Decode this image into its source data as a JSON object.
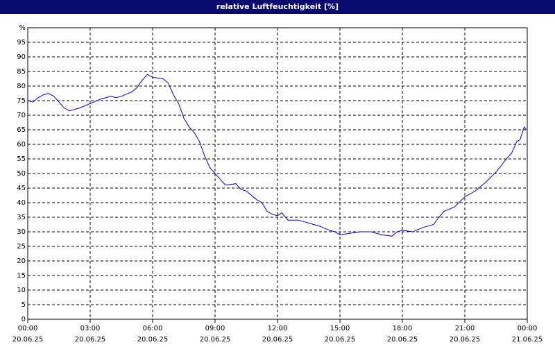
{
  "chart_data": {
    "type": "line",
    "title": "relative Luftfeuchtigkeit [%]",
    "x": [
      0,
      0.25,
      0.5,
      0.75,
      1,
      1.25,
      1.5,
      1.75,
      2,
      2.5,
      3,
      3.5,
      4,
      4.25,
      4.5,
      5,
      5.25,
      5.5,
      5.75,
      6,
      6.5,
      6.75,
      7,
      7.25,
      7.5,
      7.75,
      8,
      8.25,
      8.5,
      8.75,
      9,
      9.25,
      9.5,
      10,
      10.25,
      10.5,
      11,
      11.25,
      11.5,
      11.75,
      12,
      12.2,
      12.5,
      13,
      13.5,
      14,
      14.5,
      14.75,
      15,
      15.5,
      16,
      16.5,
      17,
      17.5,
      17.75,
      18,
      18.5,
      19,
      19.5,
      19.75,
      20,
      20.5,
      21,
      21.5,
      22,
      22.5,
      23,
      23.25,
      23.5,
      23.65,
      23.85,
      23.95
    ],
    "series": [
      {
        "name": "relative Luftfeuchtigkeit",
        "color": "#0000cc",
        "values": [
          75,
          74.5,
          76,
          77,
          77.5,
          76.5,
          74.5,
          72.5,
          71.5,
          72.5,
          74,
          75.5,
          76.5,
          76,
          76.5,
          78,
          79.5,
          82,
          84,
          83,
          82.5,
          81,
          77,
          74,
          69,
          66,
          64,
          61,
          56,
          52,
          50,
          48,
          46,
          46.5,
          44.5,
          44,
          41,
          40,
          37,
          36,
          35.5,
          36.5,
          34,
          34,
          33,
          32,
          30.5,
          30,
          29,
          29.5,
          30,
          30,
          29,
          28.5,
          30,
          30.5,
          30,
          31.5,
          32.5,
          35,
          37,
          38.5,
          42,
          44,
          47,
          50.5,
          55,
          57,
          61,
          61.5,
          66,
          65
        ]
      }
    ],
    "xlim": [
      0,
      24
    ],
    "xticks": [
      {
        "value": 0,
        "label": "00:00",
        "date": "20.06.25"
      },
      {
        "value": 3,
        "label": "03:00",
        "date": "20.06.25"
      },
      {
        "value": 6,
        "label": "06:00",
        "date": "20.06.25"
      },
      {
        "value": 9,
        "label": "09:00",
        "date": "20.06.25"
      },
      {
        "value": 12,
        "label": "12:00",
        "date": "20.06.25"
      },
      {
        "value": 15,
        "label": "15:00",
        "date": "20.06.25"
      },
      {
        "value": 18,
        "label": "18:00",
        "date": "20.06.25"
      },
      {
        "value": 21,
        "label": "21:00",
        "date": "20.06.25"
      },
      {
        "value": 24,
        "label": "00:00",
        "date": "21.06.25"
      }
    ],
    "ylim": [
      0,
      100
    ],
    "yticks": [
      0,
      5,
      10,
      15,
      20,
      25,
      30,
      35,
      40,
      45,
      50,
      55,
      60,
      65,
      70,
      75,
      80,
      85,
      90,
      95,
      {
        "value": 100,
        "label": "%"
      }
    ],
    "grid": true
  }
}
